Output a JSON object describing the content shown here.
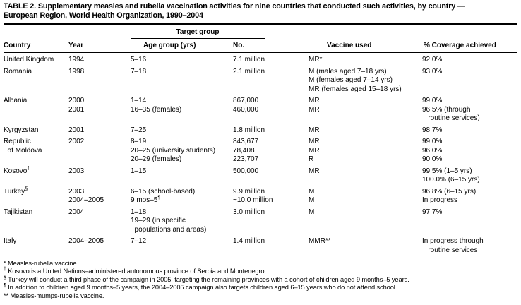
{
  "title": {
    "line1": "TABLE 2. Supplementary measles and rubella vaccination activities for nine countries that conducted such activities, by country —",
    "line2": "European Region, World Health Organization, 1990–2004"
  },
  "colors": {
    "text": "#000000",
    "background": "#ffffff"
  },
  "table": {
    "group_header": "Target group",
    "columns": {
      "country": "Country",
      "year": "Year",
      "age": "Age group (yrs)",
      "no": "No.",
      "vaccine": "Vaccine used",
      "coverage": "% Coverage achieved"
    },
    "rows": [
      {
        "country": [
          "United Kingdom"
        ],
        "year": [
          "1994"
        ],
        "age": [
          "5–16"
        ],
        "no": [
          "7.1 million"
        ],
        "vaccine": [
          "MR*"
        ],
        "coverage": [
          "92.0%"
        ]
      },
      {
        "country": [
          "Romania"
        ],
        "year": [
          "1998"
        ],
        "age": [
          "7–18"
        ],
        "no": [
          "2.1 million"
        ],
        "vaccine": [
          "M (males aged 7–18 yrs)",
          "M (females aged 7–14 yrs)",
          "MR (females aged 15–18 yrs)"
        ],
        "coverage": [
          "93.0%"
        ]
      },
      {
        "country": [
          "Albania"
        ],
        "year": [
          "2000",
          "2001"
        ],
        "age": [
          "1–14",
          "16–35 (females)"
        ],
        "no": [
          "867,000",
          "460,000"
        ],
        "vaccine": [
          "MR",
          "MR"
        ],
        "coverage": [
          "99.0%",
          "96.5% (through",
          "   routine services)"
        ]
      },
      {
        "country": [
          "Kyrgyzstan"
        ],
        "year": [
          "2001"
        ],
        "age": [
          "7–25"
        ],
        "no": [
          "1.8 million"
        ],
        "vaccine": [
          "MR"
        ],
        "coverage": [
          "98.7%"
        ]
      },
      {
        "country": [
          "Republic",
          "  of Moldova"
        ],
        "year": [
          "2002"
        ],
        "age": [
          "8–19",
          "20–25 (university students)",
          "20–29 (females)"
        ],
        "no": [
          "843,677",
          "78,408",
          "223,707"
        ],
        "vaccine": [
          "MR",
          "MR",
          "R"
        ],
        "coverage": [
          "99.0%",
          "96.0%",
          "90.0%"
        ]
      },
      {
        "country": [
          "Kosovo†"
        ],
        "year": [
          "2003"
        ],
        "age": [
          "1–15"
        ],
        "no": [
          "500,000"
        ],
        "vaccine": [
          "MR"
        ],
        "coverage": [
          "99.5% (1–5 yrs)",
          "100.0% (6–15 yrs)"
        ]
      },
      {
        "country": [
          "Turkey§"
        ],
        "year": [
          "2003",
          "2004–2005"
        ],
        "age": [
          "6–15 (school-based)",
          "9 mos–5¶"
        ],
        "no": [
          "9.9 million",
          "~10.0 million"
        ],
        "vaccine": [
          "M",
          "M"
        ],
        "coverage": [
          "96.8% (6–15 yrs)",
          "In progress"
        ]
      },
      {
        "country": [
          "Tajikistan"
        ],
        "year": [
          "2004"
        ],
        "age": [
          "1–18",
          "19–29 (in specific",
          "  populations and areas)"
        ],
        "no": [
          "3.0 million"
        ],
        "vaccine": [
          "M"
        ],
        "coverage": [
          "97.7%"
        ]
      },
      {
        "country": [
          "Italy"
        ],
        "year": [
          "2004–2005"
        ],
        "age": [
          "7–12"
        ],
        "no": [
          "1.4 million"
        ],
        "vaccine": [
          "MMR**"
        ],
        "coverage": [
          "In progress through",
          "   routine services"
        ]
      }
    ]
  },
  "footnotes": [
    "* Measles-rubella vaccine.",
    "† Kosovo is a United Nations–administered autonomous province of Serbia and Montenegro.",
    "§ Turkey will conduct a third phase of the campaign in 2005, targeting the remaining provinces with a cohort of children aged 9 months–5 years.",
    "¶ In addition to children aged 9 months–5 years, the 2004–2005 campaign also targets children aged 6–15 years who do not attend school.",
    "** Measles-mumps-rubella vaccine."
  ]
}
